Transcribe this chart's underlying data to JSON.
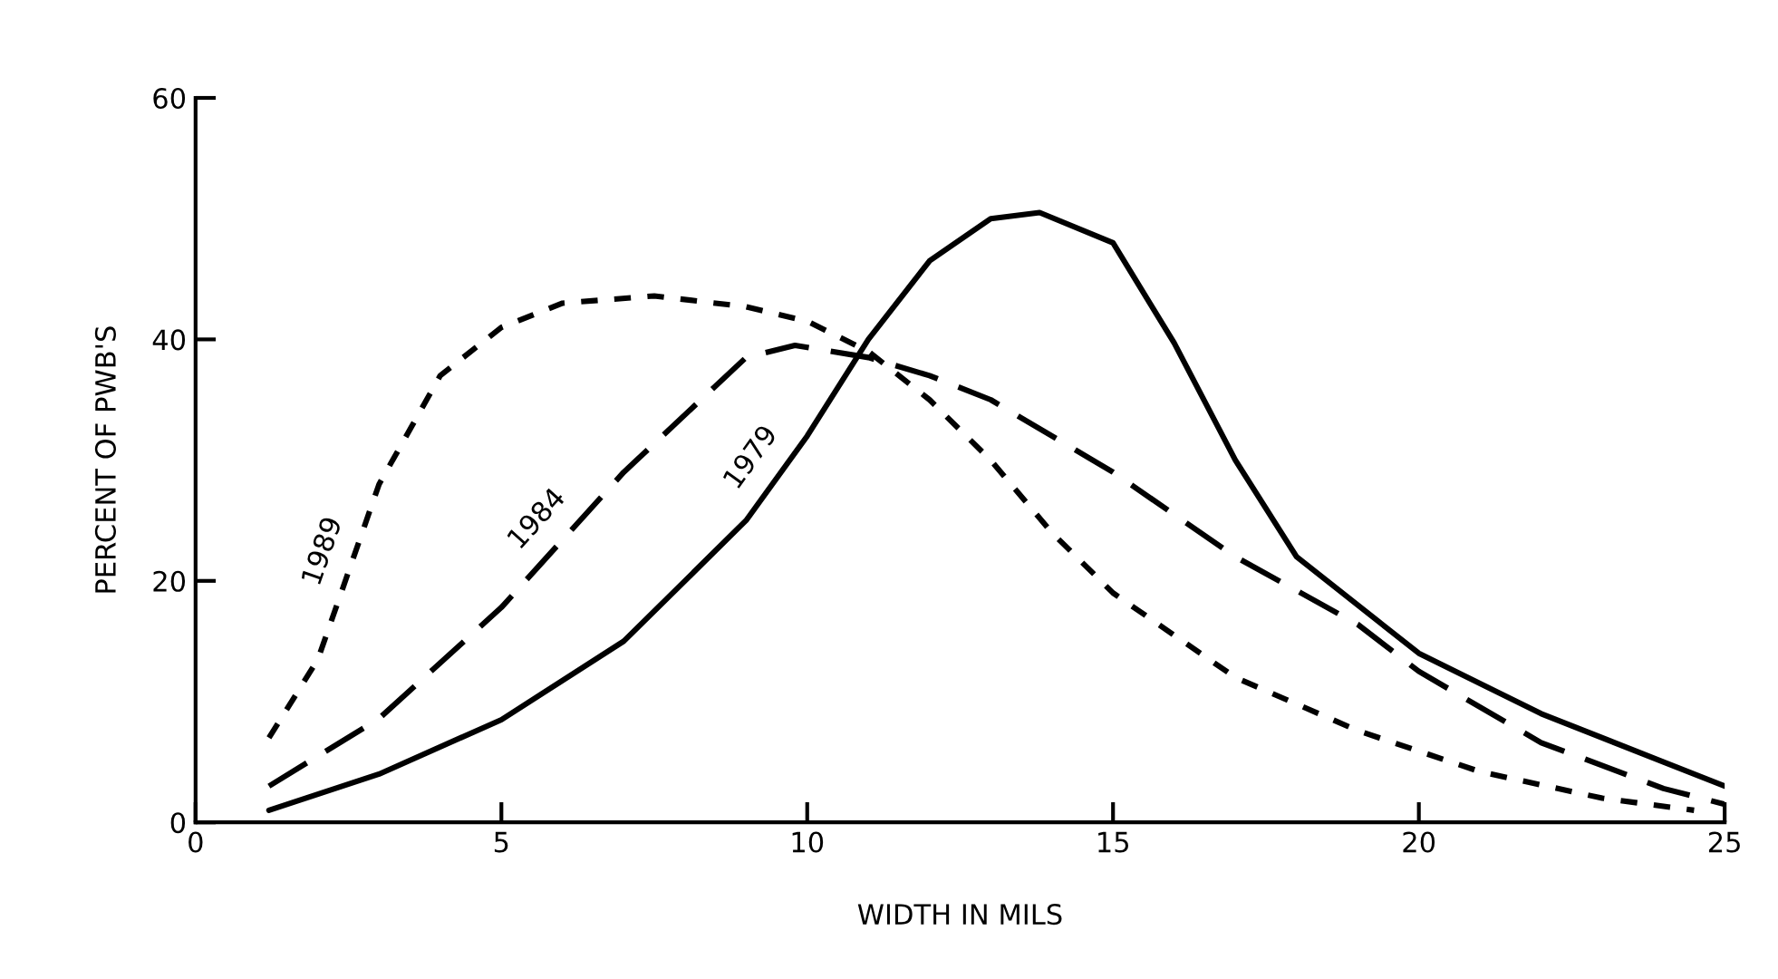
{
  "chart_data": {
    "type": "line",
    "xlabel": "WIDTH IN MILS",
    "ylabel": "PERCENT OF PWB'S",
    "xlim": [
      0,
      25
    ],
    "ylim": [
      0,
      60
    ],
    "xticks": [
      0,
      5,
      10,
      15,
      20,
      25
    ],
    "yticks": [
      0,
      20,
      40,
      60
    ],
    "grid": false,
    "legend": false,
    "marker": "none",
    "series": [
      {
        "name": "1989",
        "color": "#000000",
        "line_style": "dotted",
        "x": [
          1.2,
          2,
          3,
          4,
          5,
          6,
          7.5,
          9,
          10,
          11,
          12,
          13,
          14,
          15,
          17,
          19,
          21,
          23,
          24.5
        ],
        "values": [
          7,
          13.5,
          28,
          37,
          41,
          43,
          43.6,
          42.7,
          41.5,
          39,
          35,
          30,
          24,
          19,
          12,
          7.6,
          4.2,
          2,
          1
        ]
      },
      {
        "name": "1984",
        "color": "#000000",
        "line_style": "dashed",
        "x": [
          1.2,
          3,
          5,
          7,
          9,
          9.8,
          11,
          12,
          13,
          15,
          17,
          19,
          20,
          22,
          24,
          25
        ],
        "values": [
          3,
          8.6,
          17.8,
          29,
          38.5,
          39.5,
          38.5,
          37,
          35,
          29,
          22,
          16.4,
          12.5,
          6.6,
          2.8,
          1.5
        ]
      },
      {
        "name": "1979",
        "color": "#000000",
        "line_style": "solid",
        "x": [
          1.2,
          3,
          5,
          7,
          9,
          10,
          11,
          12,
          13,
          13.8,
          15,
          16,
          17,
          18,
          20,
          22,
          24,
          25
        ],
        "values": [
          1,
          4,
          8.5,
          15,
          25,
          32,
          40,
          46.5,
          50,
          50.5,
          48,
          39.7,
          30,
          22,
          14,
          9,
          5,
          3
        ]
      }
    ]
  }
}
